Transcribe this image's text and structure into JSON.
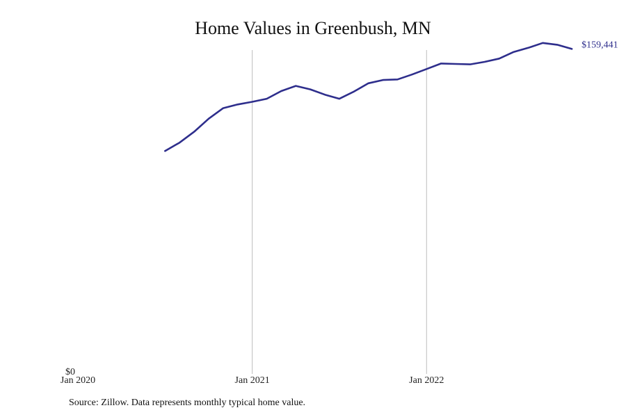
{
  "chart_data": {
    "type": "line",
    "title": "Home Values in Greenbush, MN",
    "xlabel": "",
    "ylabel": "",
    "x_ticks": [
      {
        "label": "Jan 2020",
        "value": "2020-01"
      },
      {
        "label": "Jan 2021",
        "value": "2021-01"
      },
      {
        "label": "Jan 2022",
        "value": "2022-01"
      }
    ],
    "y_ticks": [
      {
        "label": "$0",
        "value": 0
      }
    ],
    "ylim": [
      0,
      163000
    ],
    "xlim": [
      "2020-01",
      "2022-12"
    ],
    "grid": "vertical lines at Jan 2021 and Jan 2022",
    "end_label": "$159,441",
    "line_color": "#2e2e8c",
    "series": [
      {
        "x": [
          "2020-07",
          "2020-08",
          "2020-09",
          "2020-10",
          "2020-11",
          "2020-12",
          "2021-01",
          "2021-02",
          "2021-03",
          "2021-04",
          "2021-05",
          "2021-06",
          "2021-07",
          "2021-08",
          "2021-09",
          "2021-10",
          "2021-11",
          "2021-12",
          "2022-01",
          "2022-02",
          "2022-03",
          "2022-04",
          "2022-05",
          "2022-06",
          "2022-07",
          "2022-08",
          "2022-09",
          "2022-10",
          "2022-11"
        ],
        "values": [
          109400,
          113500,
          118800,
          125200,
          130400,
          132200,
          133500,
          135000,
          138800,
          141300,
          139600,
          137000,
          135000,
          138500,
          142600,
          144200,
          144500,
          146900,
          149600,
          152300,
          152100,
          151900,
          153100,
          154700,
          158000,
          160000,
          162400,
          161500,
          159441
        ]
      }
    ]
  },
  "source": "Source: Zillow. Data represents monthly typical home value."
}
